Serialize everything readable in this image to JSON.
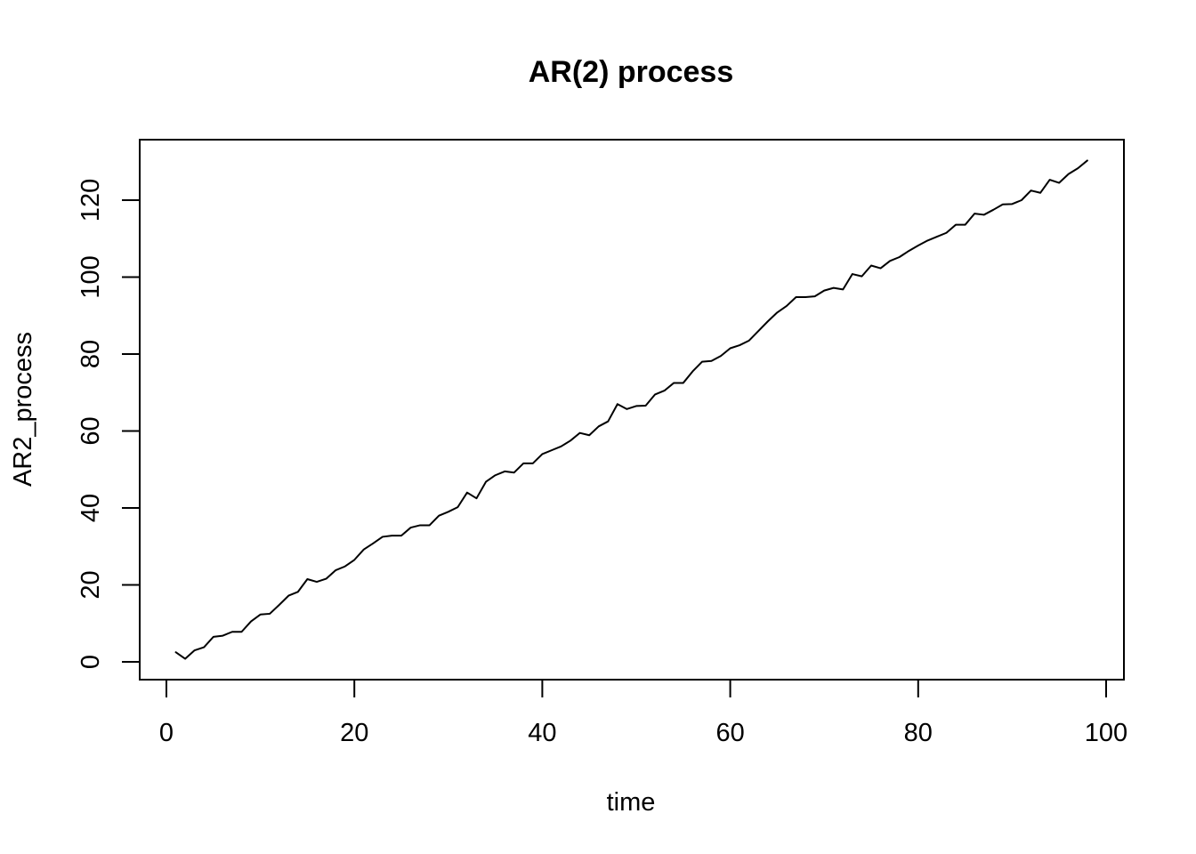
{
  "chart_data": {
    "type": "line",
    "title": "AR(2) process",
    "xlabel": "time",
    "ylabel": "AR2_process",
    "xlim": [
      0,
      100
    ],
    "ylim": [
      0,
      130
    ],
    "x_ticks": [
      0,
      20,
      40,
      60,
      80,
      100
    ],
    "y_ticks": [
      0,
      20,
      40,
      60,
      80,
      100,
      120
    ],
    "x_tick_labels": [
      "0",
      "20",
      "40",
      "60",
      "80",
      "100"
    ],
    "y_tick_labels": [
      "0",
      "20",
      "40",
      "60",
      "80",
      "100",
      "120"
    ],
    "grid": false,
    "series": [
      {
        "color": "#000000",
        "x": [
          1,
          2,
          3,
          4,
          5,
          6,
          7,
          8,
          9,
          10,
          11,
          12,
          13,
          14,
          15,
          16,
          17,
          18,
          19,
          20,
          21,
          22,
          23,
          24,
          25,
          26,
          27,
          28,
          29,
          30,
          31,
          32,
          33,
          34,
          35,
          36,
          37,
          38,
          39,
          40,
          41,
          42,
          43,
          44,
          45,
          46,
          47,
          48,
          49,
          50,
          51,
          52,
          53,
          54,
          55,
          56,
          57,
          58,
          59,
          60,
          61,
          62,
          63,
          64,
          65,
          66,
          67,
          68,
          69,
          70,
          71,
          72,
          73,
          74,
          75,
          76,
          77,
          78,
          79,
          80,
          81,
          82,
          83,
          84,
          85,
          86,
          87,
          88,
          89,
          90,
          91,
          92,
          93,
          94,
          95,
          96,
          97,
          98
        ],
        "y": [
          2.5,
          0.8,
          3.0,
          3.8,
          6.5,
          6.8,
          7.8,
          7.8,
          10.5,
          12.3,
          12.5,
          14.8,
          17.2,
          18.2,
          21.5,
          20.8,
          21.6,
          23.8,
          24.8,
          26.5,
          29.2,
          30.8,
          32.5,
          32.8,
          32.8,
          34.9,
          35.5,
          35.5,
          38.0,
          39.0,
          40.2,
          44.0,
          42.5,
          46.8,
          48.5,
          49.5,
          49.2,
          51.6,
          51.6,
          54.0,
          55.0,
          56.0,
          57.5,
          59.5,
          58.9,
          61.2,
          62.5,
          67.0,
          65.7,
          66.5,
          66.6,
          69.5,
          70.5,
          72.5,
          72.5,
          75.5,
          78.0,
          78.2,
          79.5,
          81.5,
          82.3,
          83.5,
          86.0,
          88.5,
          90.8,
          92.5,
          94.8,
          94.8,
          95.0,
          96.5,
          97.2,
          96.8,
          100.8,
          100.2,
          103.0,
          102.3,
          104.2,
          105.2,
          106.8,
          108.2,
          109.5,
          110.5,
          111.5,
          113.6,
          113.6,
          116.5,
          116.2,
          117.5,
          118.9,
          119.0,
          120.0,
          122.5,
          121.9,
          125.3,
          124.5,
          126.8,
          128.3,
          130.3
        ]
      }
    ]
  }
}
